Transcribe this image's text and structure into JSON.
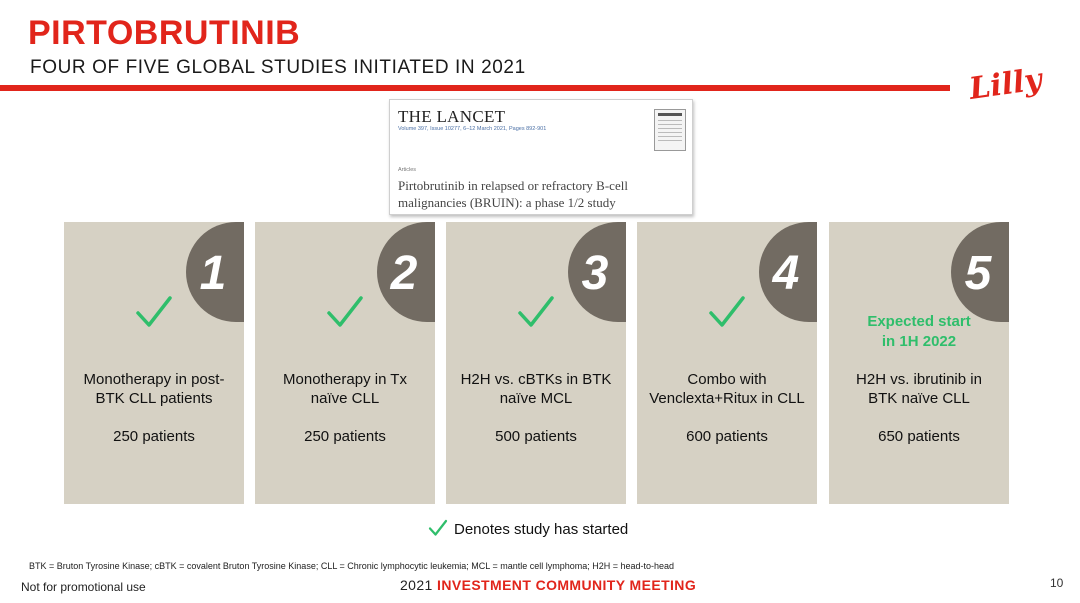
{
  "header": {
    "title": "PIRTOBRUTINIB",
    "subtitle": "FOUR OF FIVE GLOBAL STUDIES INITIATED IN 2021",
    "logo_text": "Lilly",
    "accent_color": "#e1251b"
  },
  "lancet": {
    "masthead": "THE LANCET",
    "volume": "Volume 397, Issue 10277, 6–12 March 2021, Pages 892-901",
    "section": "Articles",
    "article_title": "Pirtobrutinib in relapsed or refractory B-cell malignancies (BRUIN): a phase 1/2 study"
  },
  "studies": [
    {
      "number": "1",
      "started": true,
      "expected": "",
      "description": "Monotherapy in post-BTK CLL patients",
      "patients": "250 patients"
    },
    {
      "number": "2",
      "started": true,
      "expected": "",
      "description": "Monotherapy in Tx naïve CLL",
      "patients": "250 patients"
    },
    {
      "number": "3",
      "started": true,
      "expected": "",
      "description": "H2H vs. cBTKs in BTK naïve MCL",
      "patients": "500 patients"
    },
    {
      "number": "4",
      "started": true,
      "expected": "",
      "description": "Combo with Venclexta+Ritux in CLL",
      "patients": "600 patients"
    },
    {
      "number": "5",
      "started": false,
      "expected": "Expected start in 1H 2022",
      "description": "H2H vs. ibrutinib in BTK naïve CLL",
      "patients": "650 patients"
    }
  ],
  "legend": {
    "text": "Denotes study has started",
    "check_color": "#2fbe6b"
  },
  "footer": {
    "footnote": "BTK = Bruton Tyrosine Kinase; cBTK = covalent Bruton Tyrosine Kinase; CLL = Chronic lymphocytic leukemia; MCL = mantle cell lymphoma; H2H = head-to-head",
    "disclaimer": "Not for promotional use",
    "meeting_year": "2021",
    "meeting_name": "INVESTMENT COMMUNITY MEETING",
    "page_number": "10"
  }
}
